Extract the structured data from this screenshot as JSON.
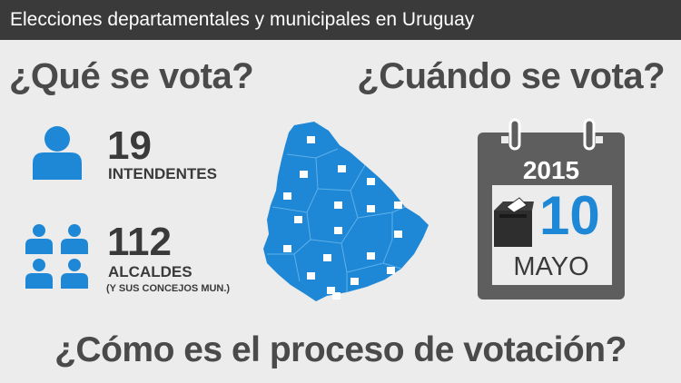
{
  "header": {
    "title": "Elecciones departamentales y municipales en Uruguay"
  },
  "sections": {
    "what_heading": "¿Qué se vota?",
    "when_heading": "¿Cuándo se vota?",
    "process_heading": "¿Cómo es el proceso de votación?"
  },
  "stats": {
    "intendentes": {
      "number": "19",
      "label": "INTENDENTES"
    },
    "alcaldes": {
      "number": "112",
      "label": "ALCALDES",
      "note": "(Y SUS CONCEJOS MUN.)"
    }
  },
  "calendar": {
    "year": "2015",
    "day": "10",
    "month": "MAYO"
  },
  "colors": {
    "accent": "#1e88d6",
    "dark": "#3a3a3a",
    "calendar_body": "#5e5e5e",
    "background": "#ececec"
  },
  "icons": [
    "person-icon",
    "group-icon",
    "uruguay-map",
    "calendar-icon",
    "ballot-box-icon"
  ]
}
